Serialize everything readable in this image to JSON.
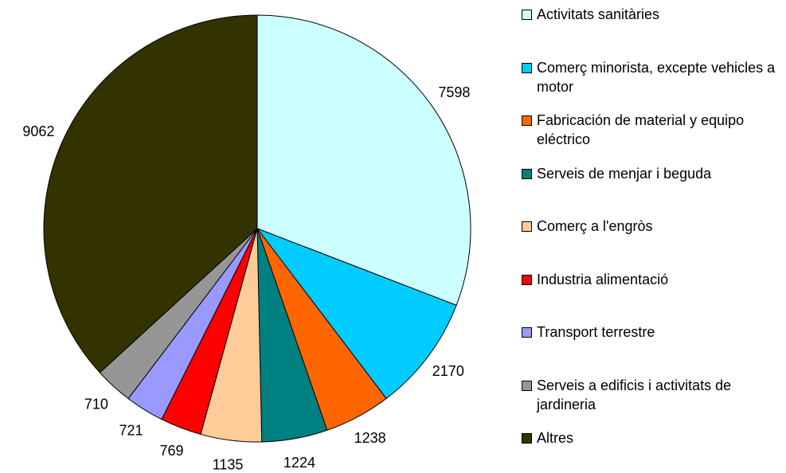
{
  "chart_data": {
    "type": "pie",
    "categories": [
      "Activitats sanitàries",
      "Comerç minorista, excepte vehicles a motor",
      "Fabricación de material y equipo eléctrico",
      "Serveis de menjar i beguda",
      "Comerç  a l'engròs",
      "Industria alimentació",
      "Transport terrestre",
      "Serveis a edificis i activitats de jardineria",
      "Altres"
    ],
    "values": [
      7598,
      2170,
      1238,
      1224,
      1135,
      769,
      721,
      710,
      9062
    ],
    "colors": [
      "#ccffff",
      "#00ccff",
      "#ff6600",
      "#008080",
      "#ffcc99",
      "#ff0000",
      "#9999ff",
      "#969696",
      "#333300"
    ],
    "legend": "right"
  }
}
